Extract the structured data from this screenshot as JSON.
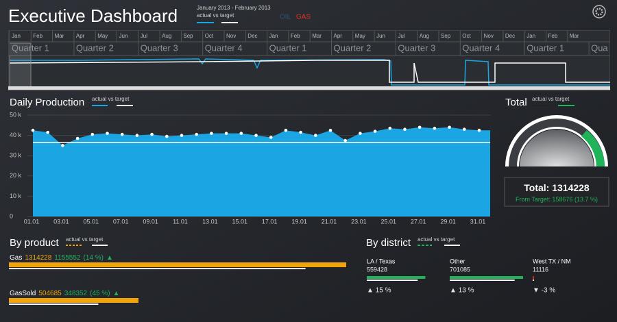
{
  "header": {
    "title": "Executive Dashboard",
    "date_range": "January 2013  -  February 2013",
    "legend": {
      "actual": "actual",
      "vs": "vs",
      "target": "target"
    },
    "filters": [
      "OIL",
      "GAS"
    ]
  },
  "timeline": {
    "months": [
      "Jan",
      "Feb",
      "Mar",
      "Apr",
      "May",
      "Jun",
      "Jul",
      "Aug",
      "Sep",
      "Oct",
      "Nov",
      "Dec",
      "Jan",
      "Feb",
      "Mar",
      "Apr",
      "May",
      "Jun",
      "Jul",
      "Aug",
      "Sep",
      "Oct",
      "Nov",
      "Dec",
      "Jan",
      "Feb",
      "Mar"
    ],
    "quarters": [
      "Quarter 1",
      "Quarter 2",
      "Quarter 3",
      "Quarter 4",
      "Quarter 1",
      "Quarter 2",
      "Quarter 3",
      "Quarter 4",
      "Quarter 1",
      "Qua"
    ]
  },
  "daily_production": {
    "type": "area",
    "title": "Daily Production",
    "legend": {
      "actual": "actual",
      "vs": "vs",
      "target": "target"
    },
    "categories": [
      "01.01",
      null,
      "03.01",
      null,
      "05.01",
      null,
      "07.01",
      null,
      "09.01",
      null,
      "11.01",
      null,
      "13.01",
      null,
      "15.01",
      null,
      "17.01",
      null,
      "19.01",
      null,
      "21.01",
      null,
      "23.01",
      null,
      "25.01",
      null,
      "27.01",
      null,
      "29.01",
      null,
      "31.01"
    ],
    "values": [
      42500,
      41500,
      35000,
      38500,
      40500,
      41000,
      40500,
      40000,
      40500,
      39500,
      40000,
      40500,
      41000,
      41000,
      41000,
      40000,
      39000,
      42500,
      41500,
      40000,
      42500,
      37500,
      41000,
      42000,
      43500,
      43000,
      44000,
      43500,
      44000,
      43000,
      42500
    ],
    "target": 36500,
    "color": "#1ba6e3",
    "target_color": "#ffffff",
    "ylim": [
      0,
      50000
    ],
    "yticks": [
      0,
      {
        "value": 10000,
        "label": "10 k"
      },
      {
        "value": 20000,
        "label": "20 k"
      },
      {
        "value": 30000,
        "label": "30 k"
      },
      {
        "value": 40000,
        "label": "40 k"
      },
      {
        "value": 50000,
        "label": "50 k"
      }
    ],
    "grid": true
  },
  "total": {
    "title": "Total",
    "legend": {
      "actual": "actual",
      "vs": "vs",
      "target": "target"
    },
    "label": "Total:",
    "value": 1314228,
    "from_target_label": "From Target:",
    "from_target": 158676,
    "from_target_percent": "(13.7 %)"
  },
  "by_product": {
    "title": "By product",
    "legend": {
      "actual": "actual",
      "vs": "vs",
      "target": "target"
    },
    "items": [
      {
        "name": "Gas",
        "actual": 1314228,
        "target": 1155552,
        "percent": "(14 %)",
        "trend": "▲"
      },
      {
        "name": "GasSold",
        "actual": 504685,
        "target": 348352,
        "percent": "(45 %)",
        "trend": "▲"
      }
    ]
  },
  "by_district": {
    "title": "By district",
    "legend": {
      "actual": "actual",
      "vs": "vs",
      "target": "target"
    },
    "items": [
      {
        "name": "LA / Texas",
        "actual": 559428,
        "target": 486459,
        "change": "▲ 15 %",
        "color": "#1fb35a"
      },
      {
        "name": "Other",
        "actual": 701085,
        "target": 620429,
        "change": "▲ 13 %",
        "color": "#1fb35a"
      },
      {
        "name": "West TX / NM",
        "actual": 11116,
        "target": 11460,
        "change": "▼ -3 %",
        "color": "#e8321e"
      }
    ]
  }
}
